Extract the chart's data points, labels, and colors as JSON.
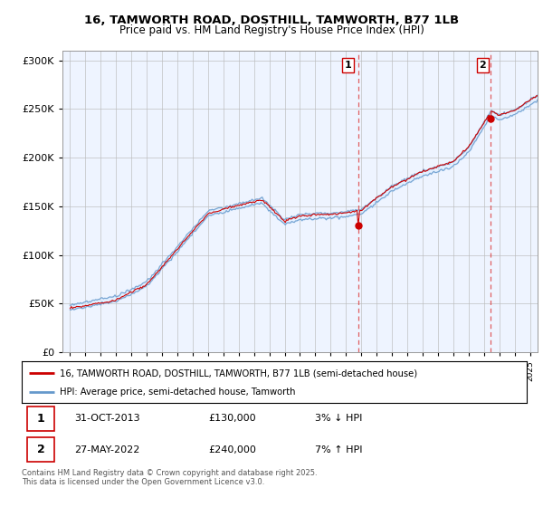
{
  "title_line1": "16, TAMWORTH ROAD, DOSTHILL, TAMWORTH, B77 1LB",
  "title_line2": "Price paid vs. HM Land Registry's House Price Index (HPI)",
  "legend_line1": "16, TAMWORTH ROAD, DOSTHILL, TAMWORTH, B77 1LB (semi-detached house)",
  "legend_line2": "HPI: Average price, semi-detached house, Tamworth",
  "annotation1_label": "1",
  "annotation1_date": "31-OCT-2013",
  "annotation1_price": "£130,000",
  "annotation1_hpi": "3% ↓ HPI",
  "annotation2_label": "2",
  "annotation2_date": "27-MAY-2022",
  "annotation2_price": "£240,000",
  "annotation2_hpi": "7% ↑ HPI",
  "footer": "Contains HM Land Registry data © Crown copyright and database right 2025.\nThis data is licensed under the Open Government Licence v3.0.",
  "price_color": "#cc0000",
  "hpi_color": "#6699cc",
  "hpi_fill_color": "#ddeeff",
  "annotation_vline_color": "#dd4444",
  "ylim": [
    0,
    310000
  ],
  "yticks": [
    0,
    50000,
    100000,
    150000,
    200000,
    250000,
    300000
  ],
  "background_color": "#ffffff",
  "plot_bg_color": "#eef4ff",
  "grid_color": "#bbbbbb",
  "xlim_start": 1994.5,
  "xlim_end": 2025.5,
  "sale1_t": 2013.83,
  "sale1_price": 130000,
  "sale2_t": 2022.42,
  "sale2_price": 240000
}
